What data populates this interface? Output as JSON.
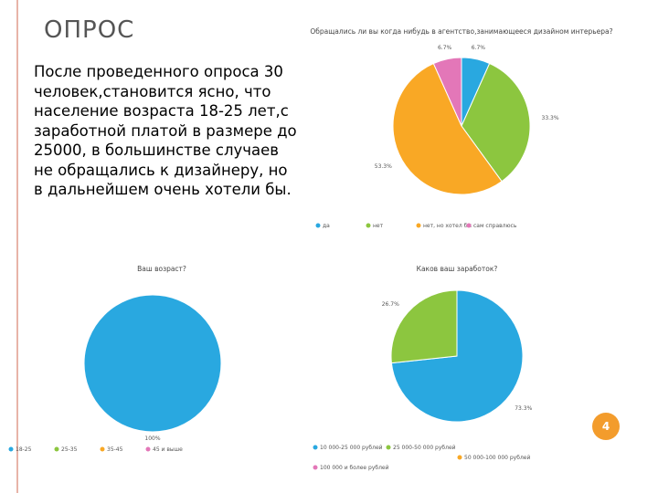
{
  "title": "ОПРОС",
  "body": "После проведенного опроса 30 человек,становится ясно, что население возраста 18-25 лет,с заработной платой в размере до 25000, в большинстве случаев не обращались к дизайнеру, но в дальнейшем очень хотели бы.",
  "page_number": "4",
  "chart_data": [
    {
      "type": "pie",
      "title": "Обращались ли вы когда нибудь в агентство,занимающееся дизайном интерьера?",
      "categories": [
        "да",
        "нет",
        "нет, но хотел бы",
        "сам справлюсь"
      ],
      "values": [
        6.7,
        33.3,
        53.3,
        6.7
      ],
      "value_labels": [
        "6.7%",
        "33.3%",
        "53.3%",
        "6.7%"
      ],
      "colors": [
        "#29a8e0",
        "#8cc63f",
        "#f9a825",
        "#e377b8"
      ]
    },
    {
      "type": "pie",
      "title": "Ваш возраст?",
      "categories": [
        "18-25",
        "25-35",
        "35-45",
        "45 и выше"
      ],
      "values": [
        100,
        0,
        0,
        0
      ],
      "value_labels": [
        "100%",
        null,
        null,
        null
      ],
      "colors": [
        "#29a8e0",
        "#8cc63f",
        "#f9a825",
        "#e377b8"
      ]
    },
    {
      "type": "pie",
      "title": "Каков ваш заработок?",
      "categories": [
        "10 000-25 000 рублей",
        "25 000-50 000 рублей",
        "50 000-100 000 рублей",
        "100 000 и более рублей"
      ],
      "values": [
        73.3,
        26.7,
        0,
        0
      ],
      "value_labels": [
        "73.3%",
        "26.7%",
        null,
        null
      ],
      "colors": [
        "#29a8e0",
        "#8cc63f",
        "#f9a825",
        "#e377b8"
      ]
    }
  ]
}
